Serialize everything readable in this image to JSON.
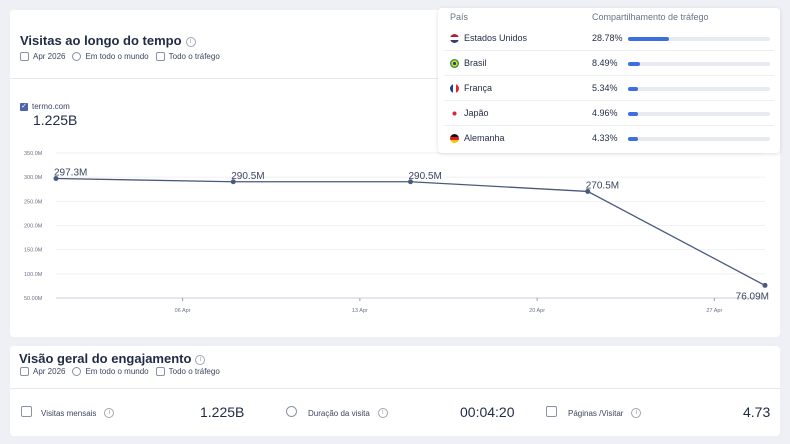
{
  "visits": {
    "title": "Visitas ao longo do tempo",
    "meta": {
      "date": "Apr 2026",
      "region": "Em todo o mundo",
      "traffic": "Todo o tráfego"
    },
    "legend_site": "termo.com",
    "total": "1.225B",
    "checkbox_color": "#4f63a8"
  },
  "chart_data": {
    "type": "line",
    "x": [
      "2026-04-01",
      "2026-04-08",
      "2026-04-15",
      "2026-04-22",
      "2026-04-29"
    ],
    "y": [
      297.3,
      290.5,
      290.5,
      270.5,
      76.09
    ],
    "point_labels": [
      "297.3M",
      "290.5M",
      "290.5M",
      "270.5M",
      "76.09M"
    ],
    "y_ticks": [
      "50.00M",
      "100.0M",
      "150.0M",
      "200.0M",
      "250.0M",
      "300.0M",
      "350.0M"
    ],
    "y_tick_values": [
      50,
      100,
      150,
      200,
      250,
      300,
      350
    ],
    "x_ticks": [
      "06 Apr",
      "13 Apr",
      "20 Apr",
      "27 Apr"
    ],
    "x_tick_dates": [
      "2026-04-06",
      "2026-04-13",
      "2026-04-20",
      "2026-04-27"
    ],
    "ylim": [
      50,
      350
    ],
    "xlim": [
      "2026-04-01",
      "2026-04-29"
    ],
    "line_color": "#4a5a7e",
    "grid": true
  },
  "countries": {
    "col_country": "País",
    "col_share": "Compartilhamento de tráfego",
    "bar_color": "#3e6fe0",
    "items": [
      {
        "name": "Estados Unidos",
        "share": "28.78%",
        "share_value": 0.2878,
        "flag": "us-flag-icon"
      },
      {
        "name": "Brasil",
        "share": "8.49%",
        "share_value": 0.0849,
        "flag": "br-flag-icon"
      },
      {
        "name": "França",
        "share": "5.34%",
        "share_value": 0.0534,
        "flag": "fr-flag-icon"
      },
      {
        "name": "Japão",
        "share": "4.96%",
        "share_value": 0.0496,
        "flag": "jp-flag-icon"
      },
      {
        "name": "Alemanha",
        "share": "4.33%",
        "share_value": 0.0433,
        "flag": "de-flag-icon"
      }
    ]
  },
  "engagement": {
    "title": "Visão geral do engajamento",
    "meta": {
      "date": "Apr 2026",
      "region": "Em todo o mundo",
      "traffic": "Todo o tráfego"
    },
    "monthly_visits_label": "Visitas mensais",
    "monthly_visits_value": "1.225B",
    "duration_label": "Duração da visita",
    "duration_value": "00:04:20",
    "pages_label": "Páginas /Visitar",
    "pages_value": "4.73"
  }
}
